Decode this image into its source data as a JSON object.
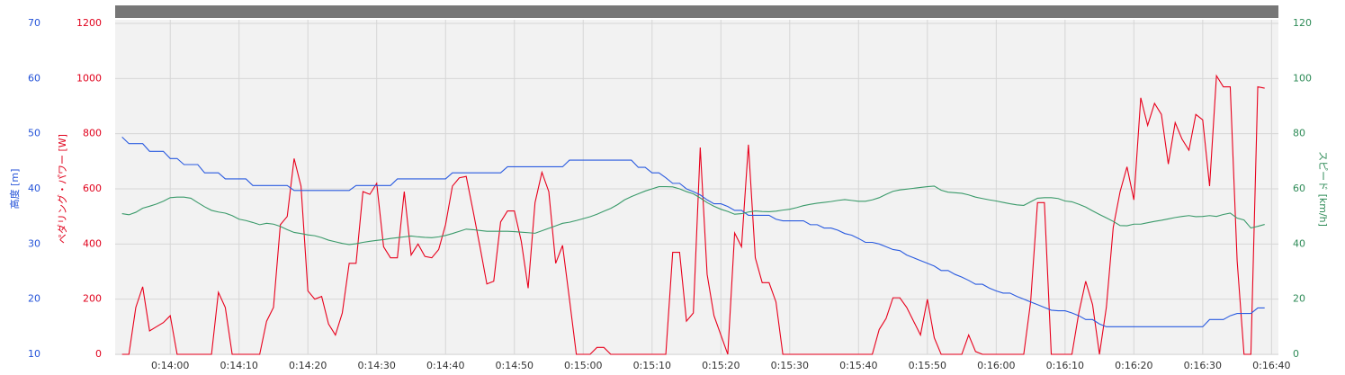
{
  "chart_data": {
    "type": "line",
    "grid": true,
    "x": [
      833,
      834,
      835,
      836,
      837,
      838,
      839,
      840,
      841,
      842,
      843,
      844,
      845,
      846,
      847,
      848,
      849,
      850,
      851,
      852,
      853,
      854,
      855,
      856,
      857,
      858,
      859,
      860,
      861,
      862,
      863,
      864,
      865,
      866,
      867,
      868,
      869,
      870,
      871,
      872,
      873,
      874,
      875,
      876,
      877,
      878,
      879,
      880,
      881,
      882,
      883,
      884,
      885,
      886,
      887,
      888,
      889,
      890,
      891,
      892,
      893,
      894,
      895,
      896,
      897,
      898,
      899,
      900,
      901,
      902,
      903,
      904,
      905,
      906,
      907,
      908,
      909,
      910,
      911,
      912,
      913,
      914,
      915,
      916,
      917,
      918,
      919,
      920,
      921,
      922,
      923,
      924,
      925,
      926,
      927,
      928,
      929,
      930,
      931,
      932,
      933,
      934,
      935,
      936,
      937,
      938,
      939,
      940,
      941,
      942,
      943,
      944,
      945,
      946,
      947,
      948,
      949,
      950,
      951,
      952,
      953,
      954,
      955,
      956,
      957,
      958,
      959,
      960,
      961,
      962,
      963,
      964,
      965,
      966,
      967,
      968,
      969,
      970,
      971,
      972,
      973,
      974,
      975,
      976,
      977,
      978,
      979,
      980,
      981,
      982,
      983,
      984,
      985,
      986,
      987,
      988,
      989,
      990,
      991,
      992,
      993,
      994,
      995,
      996,
      997,
      998,
      999
    ],
    "xlim": [
      832,
      1001
    ],
    "xticks": [
      {
        "value": 840,
        "label": "0:14:00"
      },
      {
        "value": 850,
        "label": "0:14:10"
      },
      {
        "value": 860,
        "label": "0:14:20"
      },
      {
        "value": 870,
        "label": "0:14:30"
      },
      {
        "value": 880,
        "label": "0:14:40"
      },
      {
        "value": 890,
        "label": "0:14:50"
      },
      {
        "value": 900,
        "label": "0:15:00"
      },
      {
        "value": 910,
        "label": "0:15:10"
      },
      {
        "value": 920,
        "label": "0:15:20"
      },
      {
        "value": 930,
        "label": "0:15:30"
      },
      {
        "value": 940,
        "label": "0:15:40"
      },
      {
        "value": 950,
        "label": "0:15:50"
      },
      {
        "value": 960,
        "label": "0:16:00"
      },
      {
        "value": 970,
        "label": "0:16:10"
      },
      {
        "value": 980,
        "label": "0:16:20"
      },
      {
        "value": 990,
        "label": "0:16:30"
      },
      {
        "value": 1000,
        "label": "0:16:40"
      }
    ],
    "axes": [
      {
        "label": "高度 [m]",
        "color": "#2352d8",
        "lim": [
          10,
          70
        ],
        "ticks": [
          10,
          20,
          30,
          40,
          50,
          60,
          70
        ]
      },
      {
        "label": "ペダリング・パワー [W]",
        "color": "#e0001b",
        "lim": [
          0,
          1200
        ],
        "ticks": [
          0,
          200,
          400,
          600,
          800,
          1000,
          1200
        ]
      },
      {
        "label": "スピード [km/h]",
        "color": "#2e8b57",
        "lim": [
          0,
          120
        ],
        "ticks": [
          0,
          20,
          40,
          60,
          80,
          100,
          120
        ]
      }
    ],
    "series": [
      {
        "axis": 1,
        "color": "#e8001c",
        "values": [
          0,
          0,
          170,
          245,
          85,
          100,
          115,
          140,
          0,
          0,
          0,
          0,
          0,
          0,
          225,
          170,
          0,
          0,
          0,
          0,
          0,
          120,
          170,
          470,
          500,
          710,
          610,
          230,
          200,
          210,
          110,
          70,
          150,
          330,
          330,
          590,
          580,
          620,
          390,
          350,
          350,
          590,
          360,
          400,
          355,
          350,
          380,
          470,
          610,
          640,
          645,
          520,
          390,
          255,
          265,
          480,
          520,
          520,
          410,
          240,
          550,
          660,
          590,
          330,
          395,
          200,
          0,
          0,
          0,
          25,
          25,
          0,
          0,
          0,
          0,
          0,
          0,
          0,
          0,
          0,
          370,
          370,
          120,
          150,
          750,
          290,
          140,
          70,
          0,
          440,
          390,
          760,
          350,
          260,
          260,
          190,
          0,
          0,
          0,
          0,
          0,
          0,
          0,
          0,
          0,
          0,
          0,
          0,
          0,
          0,
          90,
          130,
          205,
          205,
          170,
          120,
          70,
          200,
          60,
          0,
          0,
          0,
          0,
          70,
          10,
          0,
          0,
          0,
          0,
          0,
          0,
          0,
          190,
          550,
          550,
          0,
          0,
          0,
          0,
          150,
          265,
          180,
          0,
          170,
          460,
          590,
          680,
          560,
          930,
          830,
          910,
          870,
          690,
          840,
          780,
          740,
          870,
          850,
          610,
          1010,
          970,
          970,
          340,
          0,
          0,
          970,
          965
        ]
      },
      {
        "axis": 0,
        "color": "#2a5be0",
        "values": [
          49.4,
          48.2,
          48.2,
          48.2,
          46.8,
          46.8,
          46.8,
          45.5,
          45.5,
          44.4,
          44.4,
          44.4,
          42.9,
          42.9,
          42.9,
          41.8,
          41.8,
          41.8,
          41.8,
          40.6,
          40.6,
          40.6,
          40.6,
          40.6,
          40.6,
          39.7,
          39.7,
          39.7,
          39.7,
          39.7,
          39.7,
          39.7,
          39.7,
          39.7,
          40.6,
          40.6,
          40.6,
          40.6,
          40.6,
          40.6,
          41.8,
          41.8,
          41.8,
          41.8,
          41.8,
          41.8,
          41.8,
          41.8,
          42.9,
          42.9,
          42.9,
          42.9,
          42.9,
          42.9,
          42.9,
          42.9,
          44,
          44,
          44,
          44,
          44,
          44,
          44,
          44,
          44,
          45.2,
          45.2,
          45.2,
          45.2,
          45.2,
          45.2,
          45.2,
          45.2,
          45.2,
          45.2,
          43.9,
          43.9,
          42.9,
          42.9,
          42,
          41,
          41,
          40,
          39.5,
          38.9,
          38,
          37.3,
          37.3,
          36.8,
          36.1,
          36.1,
          35.2,
          35.2,
          35.2,
          35.2,
          34.5,
          34.2,
          34.2,
          34.2,
          34.2,
          33.5,
          33.5,
          32.9,
          32.9,
          32.5,
          31.9,
          31.6,
          31,
          30.3,
          30.3,
          30,
          29.5,
          29,
          28.8,
          28,
          27.5,
          27,
          26.5,
          26,
          25.2,
          25.2,
          24.5,
          24,
          23.4,
          22.7,
          22.7,
          22,
          21.5,
          21.1,
          21.1,
          20.5,
          20,
          19.5,
          19,
          18.5,
          18,
          17.9,
          17.9,
          17.5,
          17,
          16.3,
          16.3,
          15.5,
          15,
          15,
          15,
          15,
          15,
          15,
          15,
          15,
          15,
          15,
          15,
          15,
          15,
          15,
          15,
          16.3,
          16.3,
          16.3,
          17,
          17.4,
          17.4,
          17.4,
          18.4,
          18.4
        ]
      },
      {
        "axis": 2,
        "color": "#3a9a6a",
        "values": [
          51,
          50.6,
          51.5,
          53,
          53.7,
          54.5,
          55.5,
          56.8,
          57,
          57,
          56.6,
          55,
          53.5,
          52.2,
          51.6,
          51.2,
          50.3,
          49,
          48.5,
          47.8,
          47,
          47.5,
          47.2,
          46.4,
          45.2,
          44.2,
          43.8,
          43.3,
          43,
          42.3,
          41.4,
          40.8,
          40.2,
          39.8,
          40.1,
          40.6,
          41,
          41.3,
          41.6,
          42,
          42.3,
          42.6,
          42.9,
          42.6,
          42.4,
          42.3,
          42.6,
          43.1,
          43.8,
          44.6,
          45.4,
          45.2,
          44.9,
          44.6,
          44.6,
          44.6,
          44.6,
          44.5,
          44.3,
          44.1,
          43.9,
          44.8,
          45.7,
          46.6,
          47.5,
          47.9,
          48.5,
          49.2,
          49.9,
          50.8,
          51.9,
          52.9,
          54.3,
          56,
          57.2,
          58.2,
          59.2,
          60,
          60.8,
          60.8,
          60.7,
          60,
          59,
          58.2,
          56.7,
          55,
          53.7,
          52.6,
          51.8,
          50.8,
          51,
          51.6,
          52,
          51.8,
          51.7,
          51.9,
          52.3,
          52.6,
          53.2,
          53.9,
          54.4,
          54.8,
          55.1,
          55.4,
          55.8,
          56.1,
          55.8,
          55.5,
          55.5,
          56,
          56.8,
          58,
          59.1,
          59.6,
          59.9,
          60.2,
          60.5,
          60.8,
          61,
          59.5,
          58.8,
          58.6,
          58.4,
          57.8,
          57,
          56.5,
          56,
          55.6,
          55.1,
          54.6,
          54.2,
          54,
          55.3,
          56.6,
          56.8,
          56.8,
          56.5,
          55.6,
          55.3,
          54.4,
          53.4,
          52,
          50.7,
          49.5,
          48.2,
          46.7,
          46.6,
          47.2,
          47.2,
          47.7,
          48.2,
          48.6,
          49.1,
          49.6,
          50,
          50.3,
          49.9,
          50,
          50.3,
          50,
          50.7,
          51.2,
          49.4,
          48.7,
          45.8,
          46.4,
          47.1
        ]
      }
    ]
  }
}
